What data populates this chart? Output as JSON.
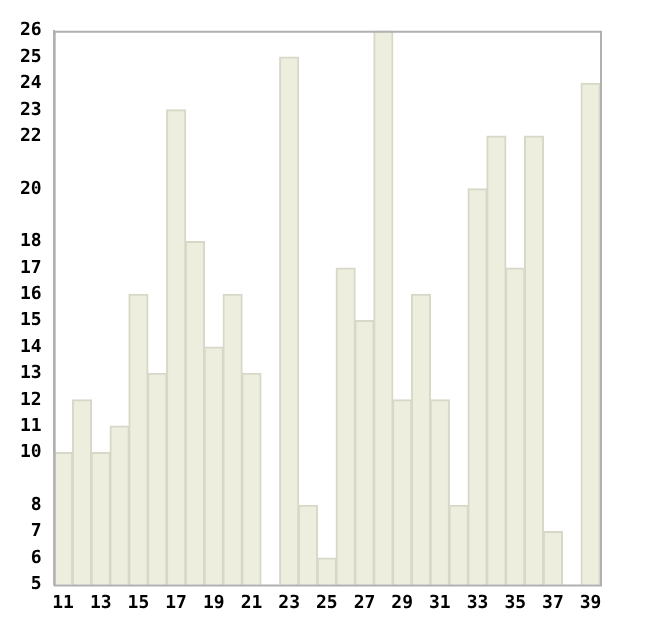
{
  "chart_data": {
    "type": "bar",
    "categories": [
      "11",
      null,
      "13",
      null,
      "15",
      null,
      "17",
      null,
      "19",
      null,
      "21",
      null,
      "23",
      null,
      "25",
      null,
      "27",
      null,
      "29",
      null,
      "31",
      null,
      "33",
      null,
      "35",
      null,
      "37",
      null,
      "39"
    ],
    "values": [
      10,
      12,
      10,
      11,
      16,
      13,
      23,
      18,
      14,
      16,
      13,
      null,
      25,
      8,
      6,
      17,
      15,
      26,
      12,
      16,
      12,
      8,
      20,
      22,
      17,
      22,
      7,
      null,
      24
    ],
    "color": "#eeeedf",
    "ylim": [
      5,
      26
    ],
    "yticks": [
      5,
      6,
      7,
      8,
      10,
      11,
      12,
      13,
      14,
      15,
      16,
      17,
      18,
      20,
      22,
      23,
      24,
      25,
      26
    ],
    "grid": false,
    "legend": false
  }
}
